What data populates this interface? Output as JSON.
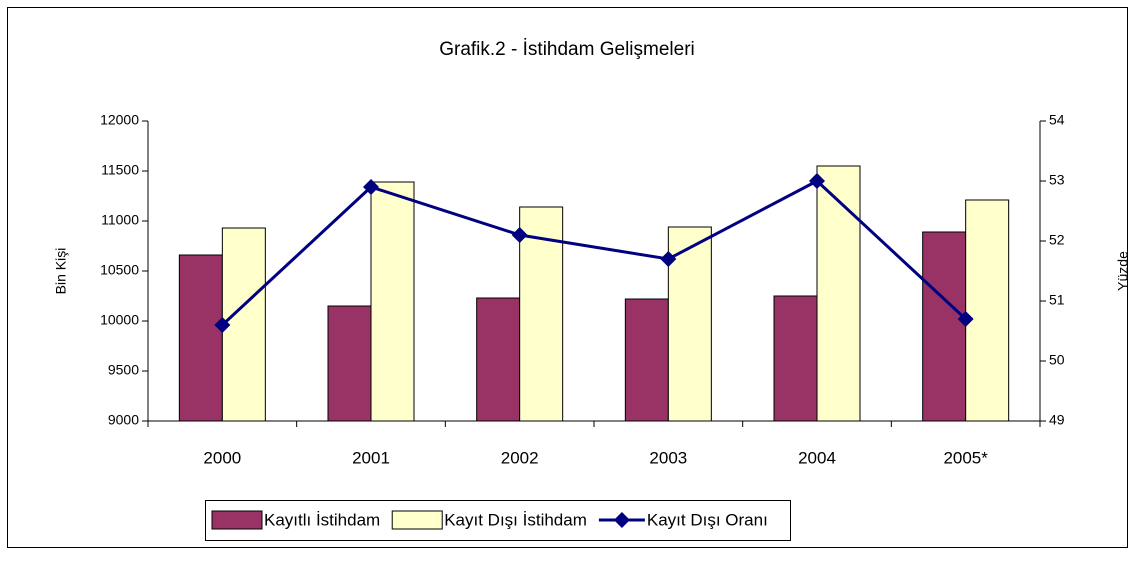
{
  "chart_data": {
    "type": "bar-line",
    "title": "Grafik.2 - İstihdam Gelişmeleri",
    "y_label": "Bin Kişi",
    "y2_label": "Yüzde",
    "categories": [
      "2000",
      "2001",
      "2002",
      "2003",
      "2004",
      "2005*"
    ],
    "series": [
      {
        "name": "Kayıtlı İstihdam",
        "type": "bar",
        "color": "#993366",
        "values": [
          10660,
          10150,
          10230,
          10220,
          10250,
          10890
        ]
      },
      {
        "name": "Kayıt Dışı İstihdam",
        "type": "bar",
        "color": "#ffffcc",
        "values": [
          10930,
          11390,
          11140,
          10940,
          11550,
          11210
        ]
      },
      {
        "name": "Kayıt Dışı Oranı",
        "type": "line",
        "axis": "y2",
        "color": "#000080",
        "values": [
          50.6,
          52.9,
          52.1,
          51.7,
          53.0,
          50.7
        ]
      }
    ],
    "ylim": [
      9000,
      12000
    ],
    "yticks": [
      9000,
      9500,
      10000,
      10500,
      11000,
      11500,
      12000
    ],
    "y2lim": [
      49,
      54
    ],
    "y2ticks": [
      49,
      50,
      51,
      52,
      53,
      54
    ],
    "grid": false,
    "legend": "bottom"
  }
}
